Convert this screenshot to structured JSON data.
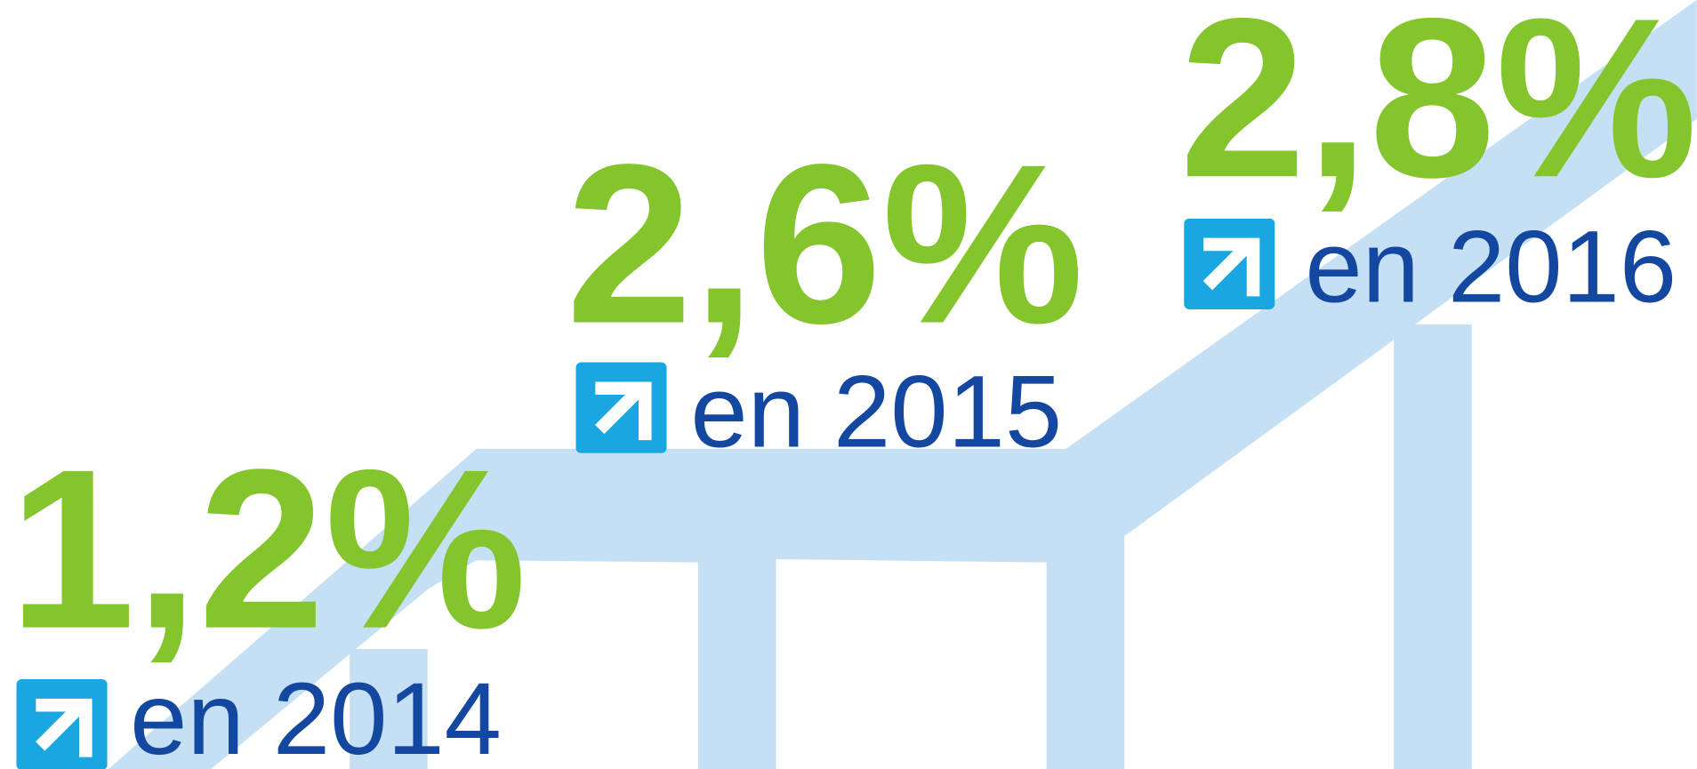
{
  "items": [
    {
      "value": "1,2%",
      "label": "en 2014"
    },
    {
      "value": "2,6%",
      "label": "en 2015"
    },
    {
      "value": "2,8%",
      "label": "en 2016"
    }
  ]
}
